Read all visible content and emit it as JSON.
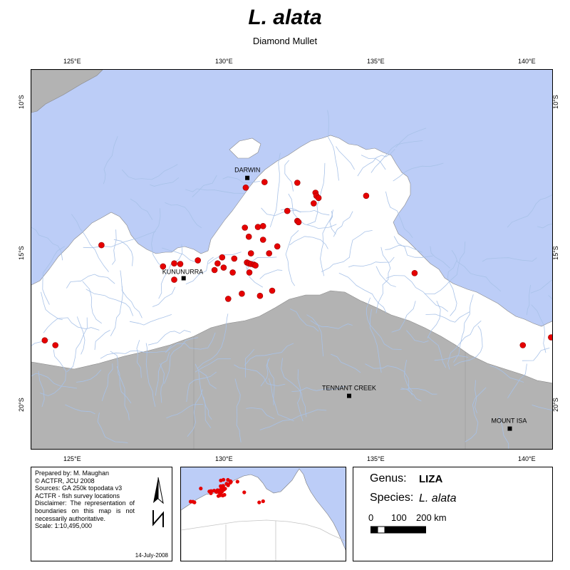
{
  "title": "L. alata",
  "subtitle": "Diamond Mullet",
  "longitude_ticks": [
    "125°E",
    "130°E",
    "135°E",
    "140°E"
  ],
  "latitude_ticks": [
    "10°S",
    "15°S",
    "20°S"
  ],
  "towns": [
    "DARWIN",
    "KUNUNURRA",
    "TENNANT CREEK",
    "MOUNT ISA"
  ],
  "survey_points": [
    [
      130.78,
      -12.78
    ],
    [
      131.4,
      -12.6
    ],
    [
      132.48,
      -12.62
    ],
    [
      133.08,
      -12.95
    ],
    [
      133.11,
      -13.05
    ],
    [
      133.18,
      -13.12
    ],
    [
      133.02,
      -13.3
    ],
    [
      134.75,
      -13.05
    ],
    [
      132.15,
      -13.55
    ],
    [
      132.48,
      -13.88
    ],
    [
      132.52,
      -13.92
    ],
    [
      126.02,
      -14.68
    ],
    [
      128.05,
      -15.38
    ],
    [
      128.42,
      -15.28
    ],
    [
      128.62,
      -15.3
    ],
    [
      128.42,
      -15.82
    ],
    [
      129.2,
      -15.18
    ],
    [
      129.85,
      -15.28
    ],
    [
      131.55,
      -14.95
    ],
    [
      130.75,
      -14.1
    ],
    [
      131.18,
      -14.08
    ],
    [
      131.35,
      -14.05
    ],
    [
      130.88,
      -14.4
    ],
    [
      131.35,
      -14.5
    ],
    [
      131.82,
      -14.72
    ],
    [
      130.95,
      -14.95
    ],
    [
      130.0,
      -15.08
    ],
    [
      130.4,
      -15.12
    ],
    [
      130.82,
      -15.25
    ],
    [
      130.88,
      -15.28
    ],
    [
      130.95,
      -15.3
    ],
    [
      131.05,
      -15.32
    ],
    [
      131.1,
      -15.35
    ],
    [
      129.75,
      -15.5
    ],
    [
      130.05,
      -15.42
    ],
    [
      130.35,
      -15.58
    ],
    [
      130.9,
      -15.58
    ],
    [
      130.65,
      -16.28
    ],
    [
      131.25,
      -16.35
    ],
    [
      131.65,
      -16.18
    ],
    [
      130.2,
      -16.45
    ],
    [
      123.6,
      -17.8
    ],
    [
      124.15,
      -17.82
    ],
    [
      124.5,
      -17.98
    ],
    [
      136.35,
      -15.6
    ],
    [
      139.92,
      -17.98
    ],
    [
      140.85,
      -17.72
    ]
  ],
  "credits": {
    "prepared": "Prepared by: M. Maughan",
    "copyright": "© ACTFR, JCU 2008",
    "sources": "Sources: GA 250k topodata v3",
    "sources2": "ACTFR - fish survey locations",
    "disclaimer": "Disclaimer: The representation of boundaries on this map is not necessarily authoritative.",
    "scale": "Scale: 1:10,495,000",
    "date": "14-July-2008"
  },
  "legend": {
    "genus_label": "Genus:",
    "genus_value": "LIZA",
    "species_label": "Species:",
    "species_value": "L. alata",
    "scale_ticks": [
      "0",
      "100",
      "200 km"
    ]
  },
  "colors": {
    "ocean": "#bccdf7",
    "land": "#ffffff",
    "outside_region": "#b3b3b3",
    "river": "#a8c2e8",
    "point": "#e60000"
  }
}
